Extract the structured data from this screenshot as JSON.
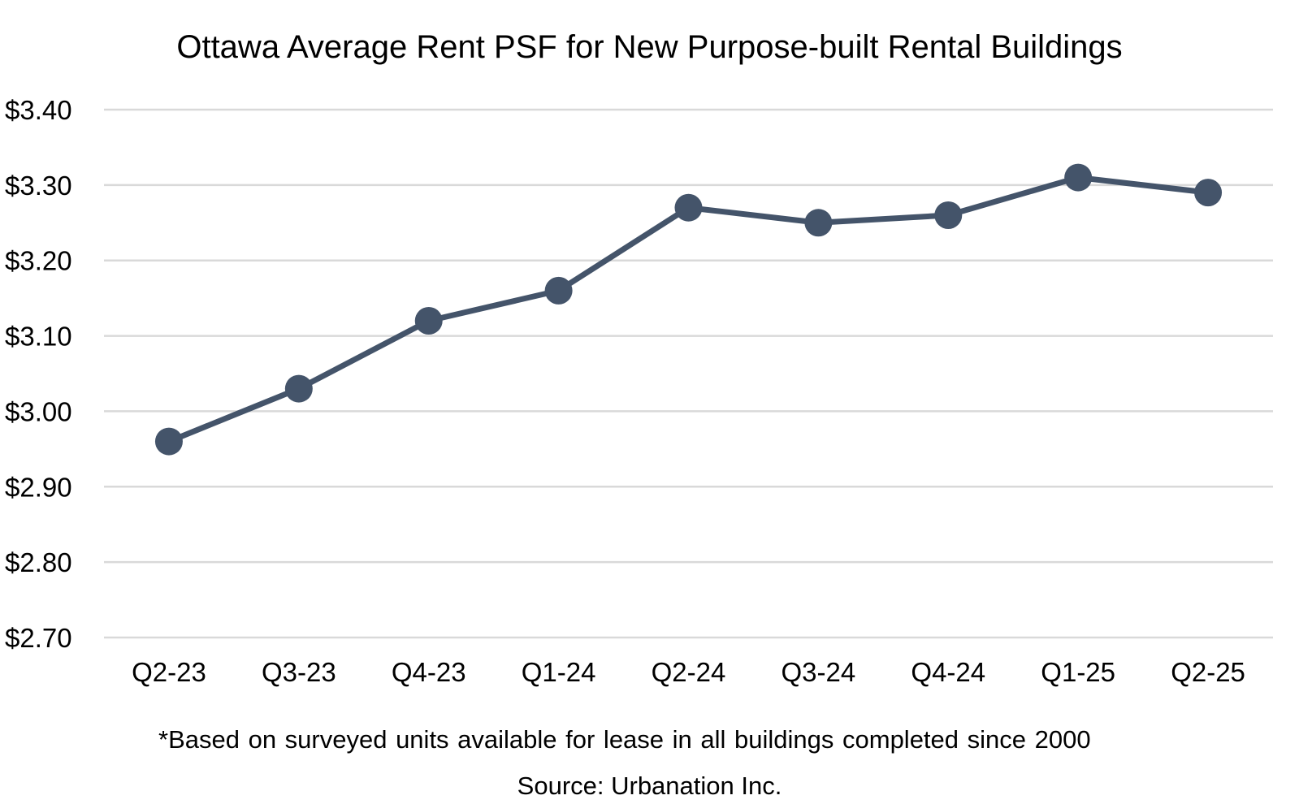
{
  "chart_data": {
    "type": "line",
    "title": "Ottawa Average Rent PSF for New Purpose-built Rental Buildings",
    "categories": [
      "Q2-23",
      "Q3-23",
      "Q4-23",
      "Q1-24",
      "Q2-24",
      "Q3-24",
      "Q4-24",
      "Q1-25",
      "Q2-25"
    ],
    "series": [
      {
        "values": [
          2.96,
          3.03,
          3.12,
          3.16,
          3.27,
          3.25,
          3.26,
          3.31,
          3.29
        ]
      }
    ],
    "ylim": [
      2.7,
      3.4
    ],
    "yticks": [
      3.4,
      3.3,
      3.2,
      3.1,
      3.0,
      2.9,
      2.8,
      2.7
    ],
    "ytick_labels": [
      "$3.40",
      "$3.30",
      "$3.20",
      "$3.10",
      "$3.00",
      "$2.90",
      "$2.80",
      "$2.70"
    ],
    "grid": true,
    "line_color": "#44546a",
    "grid_color": "#d9d9d9"
  },
  "footnote": "*Based on surveyed units available for lease in all buildings completed since 2000",
  "source": "Source: Urbanation Inc."
}
